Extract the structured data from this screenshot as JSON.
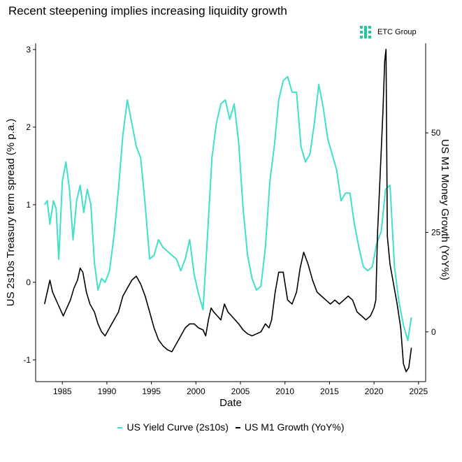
{
  "chart_data": {
    "type": "line",
    "title": "Recent steepening implies increasing liquidity growth",
    "brand": "ETC Group",
    "xlabel": "Date",
    "ylabel_left": "US 2s10s Treasury term spread (% p.a.)",
    "ylabel_right": "US M1 Money Growth (YoY%)",
    "xlim": [
      1982.0,
      2025.8
    ],
    "ylim_left": [
      -1.28,
      3.08
    ],
    "ylim_right": [
      -12.5,
      72.5
    ],
    "x_ticks": [
      1985,
      1990,
      1995,
      2000,
      2005,
      2010,
      2015,
      2020,
      2025
    ],
    "y_left_ticks": [
      -1,
      0,
      1,
      2,
      3
    ],
    "y_right_ticks": [
      0,
      25,
      50
    ],
    "grid": false,
    "legend_position": "bottom",
    "colors": {
      "yield": "#40E0C9",
      "m1": "#000000",
      "brand": "#20C9A0"
    },
    "series": [
      {
        "name": "US Yield Curve (2s10s)",
        "axis": "left",
        "x": [
          1983.0,
          1983.3,
          1983.6,
          1984.0,
          1984.3,
          1984.6,
          1985.0,
          1985.4,
          1985.8,
          1986.2,
          1986.6,
          1987.0,
          1987.4,
          1987.8,
          1988.2,
          1988.6,
          1989.0,
          1989.4,
          1989.8,
          1990.3,
          1990.8,
          1991.3,
          1991.8,
          1992.3,
          1992.8,
          1993.3,
          1993.8,
          1994.3,
          1994.8,
          1995.3,
          1995.8,
          1996.3,
          1996.8,
          1997.3,
          1997.8,
          1998.3,
          1998.8,
          1999.3,
          1999.8,
          2000.3,
          2000.8,
          2001.3,
          2001.8,
          2002.3,
          2002.8,
          2003.3,
          2003.8,
          2004.3,
          2004.8,
          2005.3,
          2005.8,
          2006.3,
          2006.8,
          2007.3,
          2007.8,
          2008.3,
          2008.8,
          2009.3,
          2009.8,
          2010.3,
          2010.8,
          2011.3,
          2011.8,
          2012.3,
          2012.8,
          2013.3,
          2013.8,
          2014.3,
          2014.8,
          2015.3,
          2015.8,
          2016.3,
          2016.8,
          2017.3,
          2017.8,
          2018.3,
          2018.8,
          2019.3,
          2019.8,
          2020.3,
          2020.8,
          2021.3,
          2021.8,
          2022.3,
          2022.8,
          2023.3,
          2023.8,
          2024.2
        ],
        "values": [
          1.0,
          1.05,
          0.75,
          1.05,
          0.95,
          0.3,
          1.3,
          1.55,
          1.2,
          0.55,
          1.05,
          1.25,
          0.9,
          1.2,
          1.0,
          0.25,
          -0.1,
          0.05,
          0.0,
          0.15,
          0.6,
          1.2,
          1.9,
          2.35,
          2.05,
          1.75,
          1.6,
          1.0,
          0.3,
          0.35,
          0.55,
          0.45,
          0.4,
          0.35,
          0.3,
          0.15,
          0.3,
          0.55,
          0.1,
          -0.15,
          -0.35,
          0.6,
          1.6,
          2.05,
          2.3,
          2.35,
          2.1,
          2.3,
          1.8,
          0.95,
          0.35,
          0.05,
          -0.1,
          -0.05,
          0.45,
          1.3,
          1.75,
          2.35,
          2.6,
          2.65,
          2.45,
          2.45,
          1.75,
          1.55,
          1.65,
          2.05,
          2.55,
          2.25,
          1.85,
          1.65,
          1.45,
          1.05,
          1.15,
          1.15,
          0.75,
          0.45,
          0.2,
          0.15,
          0.2,
          0.5,
          0.65,
          1.2,
          1.25,
          0.2,
          -0.25,
          -0.55,
          -0.75,
          -0.45
        ]
      },
      {
        "name": "US M1 Growth (YoY%)",
        "axis": "right",
        "x": [
          1983.0,
          1983.3,
          1983.6,
          1983.9,
          1984.3,
          1984.7,
          1985.1,
          1985.5,
          1985.9,
          1986.3,
          1986.7,
          1987.0,
          1987.3,
          1987.7,
          1988.1,
          1988.6,
          1989.0,
          1989.4,
          1989.8,
          1990.3,
          1990.8,
          1991.3,
          1991.8,
          1992.3,
          1992.8,
          1993.3,
          1993.8,
          1994.3,
          1994.8,
          1995.3,
          1995.8,
          1996.3,
          1996.8,
          1997.3,
          1997.8,
          1998.3,
          1998.8,
          1999.3,
          1999.8,
          2000.3,
          2000.8,
          2001.1,
          2001.4,
          2001.7,
          2002.0,
          2002.4,
          2002.8,
          2003.2,
          2003.6,
          2004.0,
          2004.4,
          2004.8,
          2005.3,
          2005.8,
          2006.3,
          2006.8,
          2007.3,
          2007.8,
          2008.2,
          2008.5,
          2008.9,
          2009.3,
          2009.8,
          2010.3,
          2010.8,
          2011.3,
          2011.7,
          2012.1,
          2012.6,
          2013.1,
          2013.6,
          2014.1,
          2014.6,
          2015.1,
          2015.6,
          2016.1,
          2016.6,
          2017.1,
          2017.6,
          2018.1,
          2018.6,
          2019.1,
          2019.6,
          2020.0,
          2020.2,
          2020.4,
          2020.6,
          2020.8,
          2021.0,
          2021.2,
          2021.35,
          2021.5,
          2021.8,
          2022.2,
          2022.6,
          2023.0,
          2023.3,
          2023.6,
          2023.9,
          2024.2
        ],
        "values": [
          7,
          10,
          13,
          10,
          8,
          6,
          4,
          6,
          8,
          11,
          13,
          16,
          15,
          10,
          7,
          5,
          2,
          0,
          -1,
          1,
          3,
          5,
          9,
          11,
          13,
          14,
          12,
          9,
          5,
          1,
          -2,
          -3.5,
          -4.5,
          -5,
          -3,
          -1,
          1,
          2,
          2,
          1,
          0.5,
          -1,
          3,
          6,
          5,
          4,
          3,
          7,
          5,
          4,
          3,
          2,
          0.5,
          -0.5,
          -1,
          -0.5,
          0,
          2,
          1,
          3,
          10,
          15,
          15,
          8,
          7,
          10,
          16,
          20,
          17,
          13,
          10,
          9,
          8,
          7,
          8,
          7,
          8,
          9,
          8,
          5,
          4,
          3,
          4,
          6,
          8,
          25,
          35,
          45,
          55,
          68,
          71,
          24,
          17,
          12,
          7,
          1,
          -8,
          -10,
          -9,
          -4
        ]
      }
    ]
  }
}
